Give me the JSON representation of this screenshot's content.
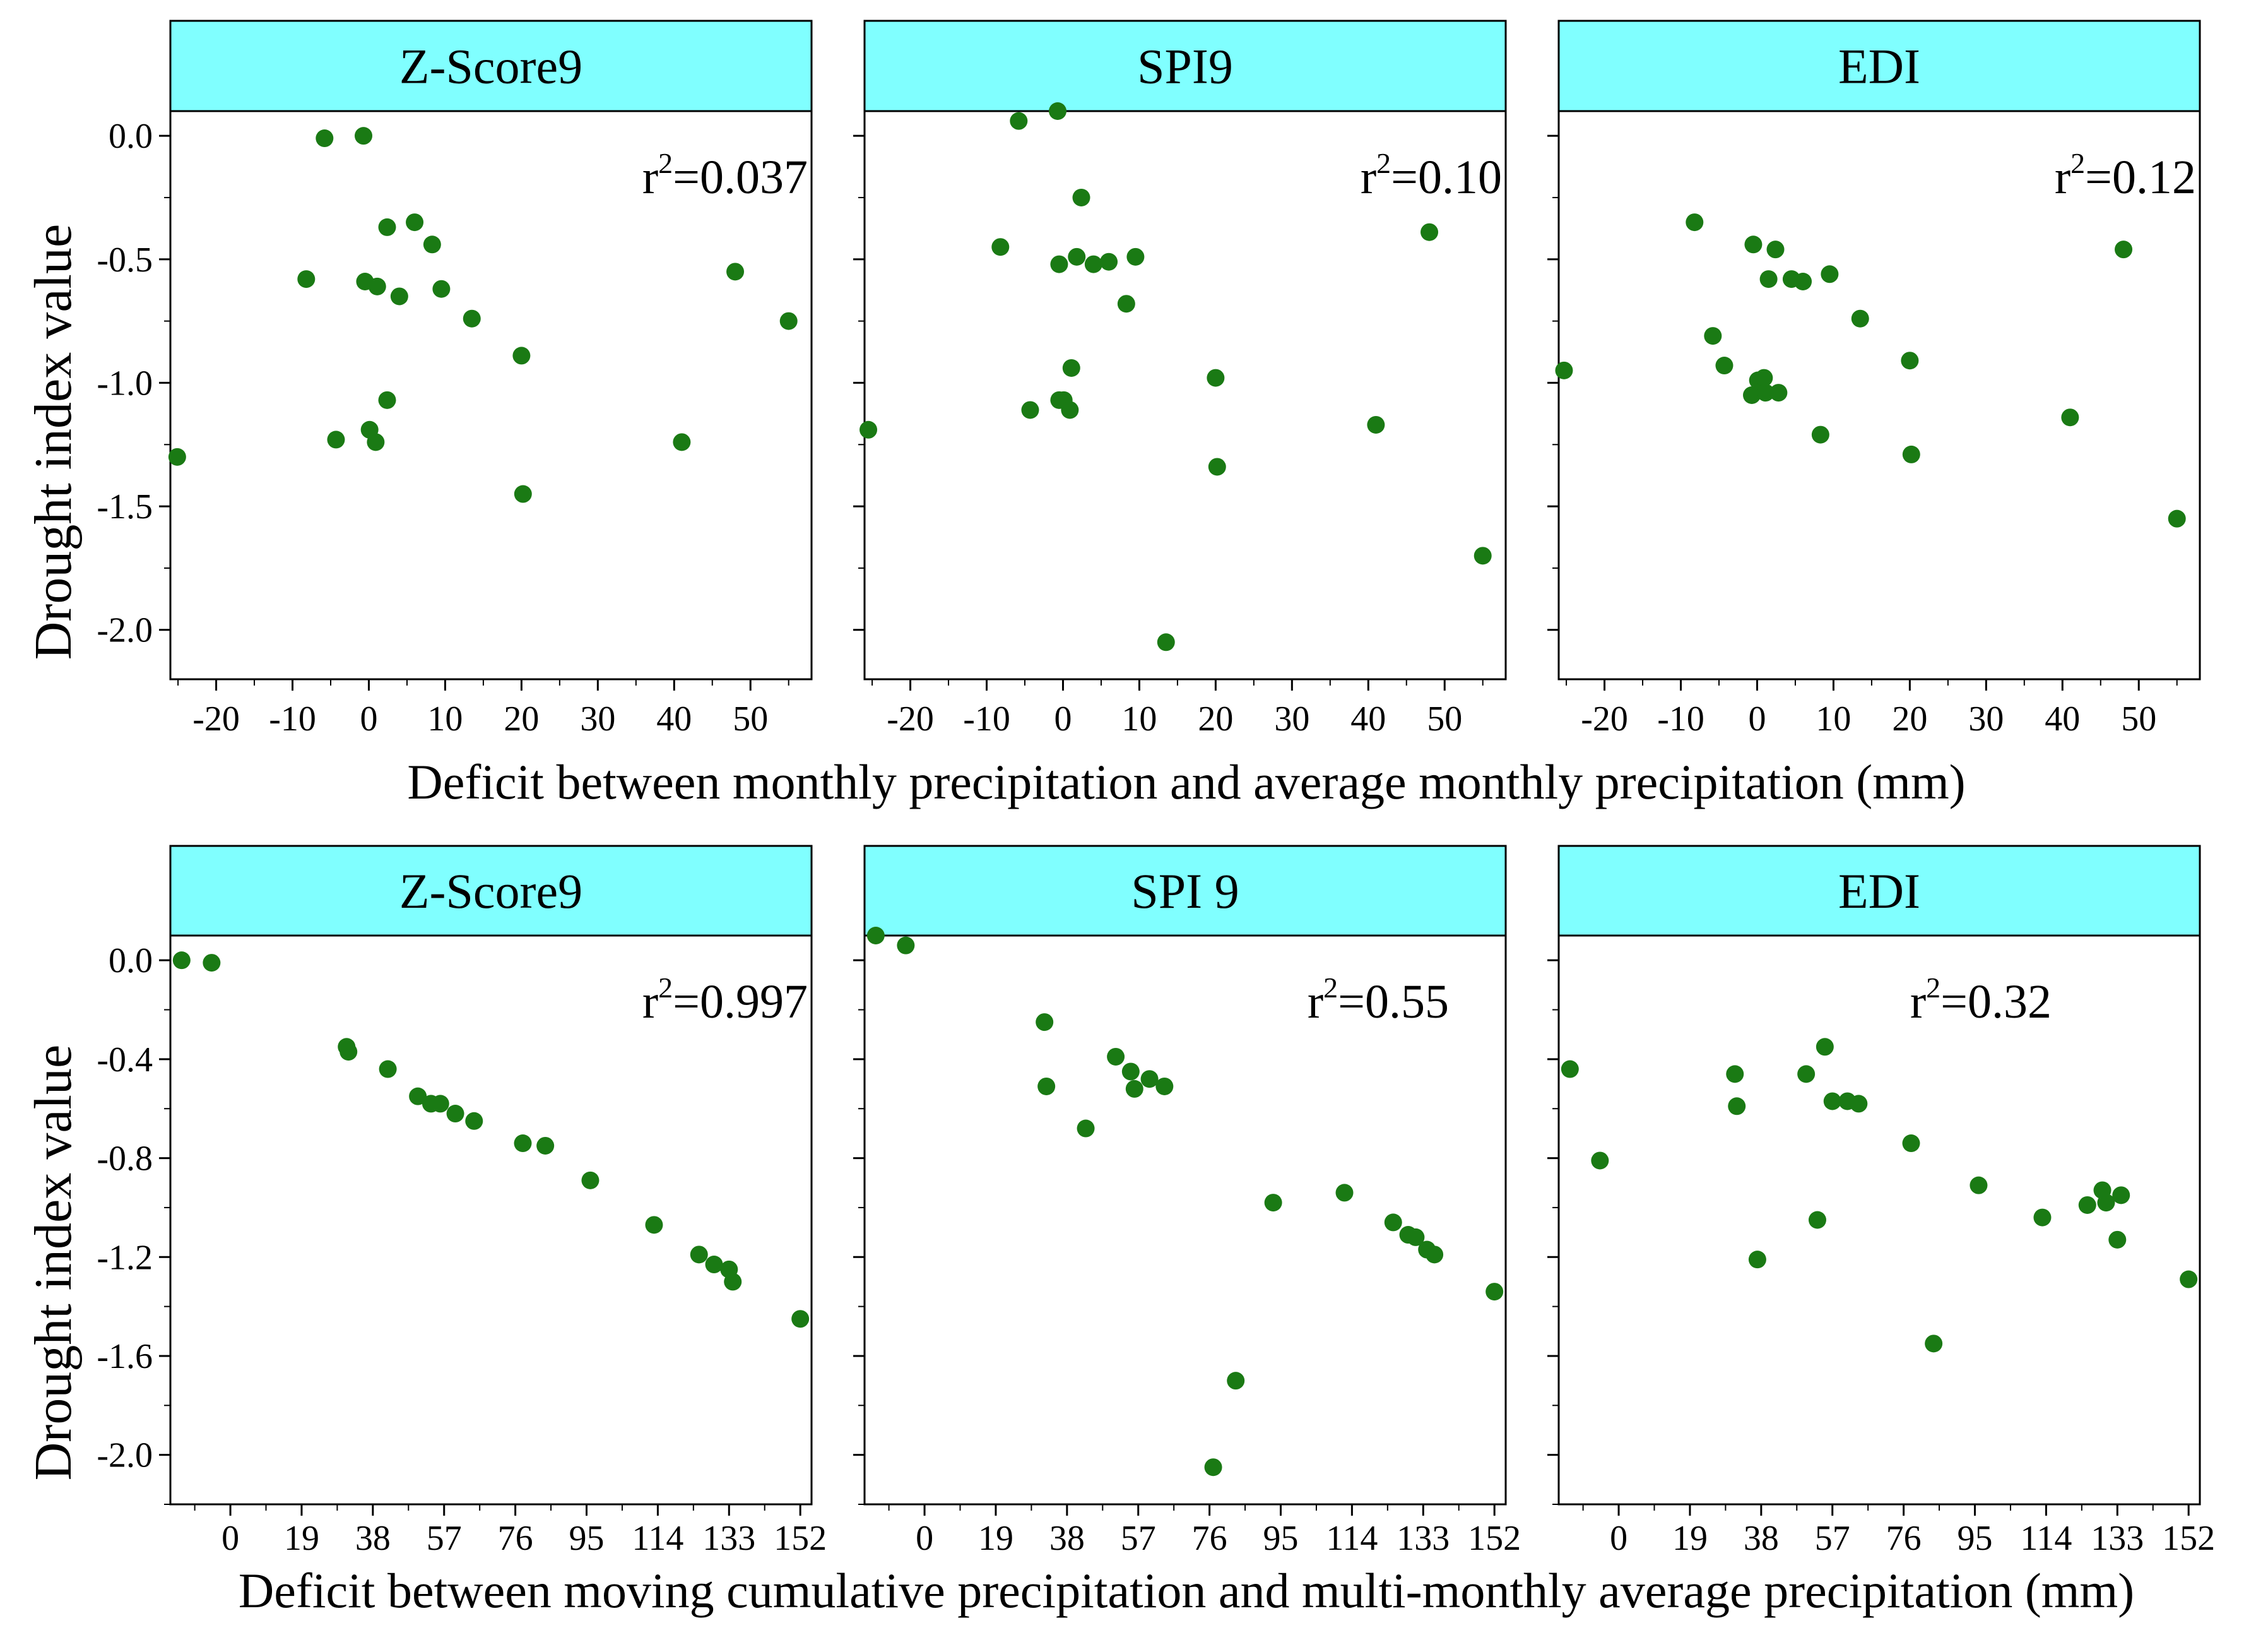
{
  "figure": {
    "ylabel": "Drought index value",
    "row_xlabels": [
      "Deficit between monthly precipitation and average monthly precipitation (mm)",
      "Deficit between moving cumulative precipitation and multi-monthly average precipitation (mm)"
    ],
    "marker_color": "#1a7a14",
    "header_color": "#80ffff"
  },
  "chart_data": [
    {
      "type": "scatter",
      "title": "Z-Score9",
      "r2_label": "r²=0.037",
      "xlim": [
        -26,
        58
      ],
      "ylim": [
        -2.2,
        0.1
      ],
      "xticks": [
        -20,
        -10,
        0,
        10,
        20,
        30,
        40,
        50
      ],
      "xticklabels": [
        "-20",
        "-10",
        "0",
        "10",
        "20",
        "30",
        "40",
        "50"
      ],
      "yticks": [
        0.0,
        -0.5,
        -1.0,
        -1.5,
        -2.0
      ],
      "yticklabels": [
        "0.0",
        "-0.5",
        "-1.0",
        "-1.5",
        "-2.0"
      ],
      "x": [
        -25.1,
        -8.2,
        -5.8,
        -0.7,
        -0.5,
        0.1,
        -4.3,
        2.4,
        1.1,
        0.9,
        2.4,
        4.0,
        6.0,
        8.3,
        9.5,
        13.5,
        20.0,
        20.2,
        41.0,
        48.0,
        55.0
      ],
      "y": [
        -1.3,
        -0.58,
        -0.01,
        0.0,
        -0.59,
        -1.19,
        -1.23,
        -0.37,
        -0.61,
        -1.24,
        -1.07,
        -0.65,
        -0.35,
        -0.44,
        -0.62,
        -0.74,
        -0.89,
        -1.45,
        -1.24,
        -0.55,
        -0.75
      ]
    },
    {
      "type": "scatter",
      "title": "SPI9",
      "r2_label": "r²=0.10",
      "xlim": [
        -26,
        58
      ],
      "ylim": [
        -2.2,
        0.1
      ],
      "xticks": [
        -20,
        -10,
        0,
        10,
        20,
        30,
        40,
        50
      ],
      "xticklabels": [
        "-20",
        "-10",
        "0",
        "10",
        "20",
        "30",
        "40",
        "50"
      ],
      "yticks": [
        0.0,
        -0.5,
        -1.0,
        -1.5,
        -2.0
      ],
      "yticklabels": [
        "0.0",
        "-0.5",
        "-1.0",
        "-1.5",
        "-2.0"
      ],
      "x": [
        -25.5,
        -8.2,
        -5.8,
        -0.7,
        -0.5,
        0.1,
        -4.3,
        -0.5,
        0.9,
        1.1,
        1.8,
        2.4,
        4.0,
        6.0,
        8.3,
        9.5,
        20.0,
        20.2,
        13.5,
        41.0,
        48.0,
        55.0
      ],
      "y": [
        -1.19,
        -0.45,
        0.06,
        0.1,
        -0.52,
        -1.07,
        -1.11,
        -1.07,
        -1.11,
        -0.94,
        -0.49,
        -0.25,
        -0.52,
        -0.51,
        -0.68,
        -0.49,
        -0.98,
        -1.34,
        -2.05,
        -1.17,
        -0.39,
        -1.7
      ]
    },
    {
      "type": "scatter",
      "title": "EDI",
      "r2_label": "r²=0.12",
      "xlim": [
        -26,
        58
      ],
      "ylim": [
        -2.2,
        0.1
      ],
      "xticks": [
        -20,
        -10,
        0,
        10,
        20,
        30,
        40,
        50
      ],
      "xticklabels": [
        "-20",
        "-10",
        "0",
        "10",
        "20",
        "30",
        "40",
        "50"
      ],
      "yticks": [
        0.0,
        -0.5,
        -1.0,
        -1.5,
        -2.0
      ],
      "yticklabels": [
        "0.0",
        "-0.5",
        "-1.0",
        "-1.5",
        "-2.0"
      ],
      "x": [
        -25.3,
        -8.2,
        -5.8,
        -4.3,
        -0.5,
        -0.7,
        0.1,
        0.9,
        1.1,
        1.5,
        2.4,
        2.8,
        4.5,
        6.0,
        8.3,
        9.5,
        13.5,
        20.0,
        20.2,
        41.0,
        48.0,
        55.0
      ],
      "y": [
        -0.95,
        -0.35,
        -0.81,
        -0.93,
        -0.44,
        -1.05,
        -0.99,
        -0.98,
        -1.04,
        -0.58,
        -0.46,
        -1.04,
        -0.58,
        -0.59,
        -1.21,
        -0.56,
        -0.74,
        -0.91,
        -1.29,
        -1.14,
        -0.46,
        -1.55
      ]
    },
    {
      "type": "scatter",
      "title": "Z-Score9",
      "r2_label": "r²=0.997",
      "xlim": [
        -16,
        155
      ],
      "ylim": [
        -2.2,
        0.1
      ],
      "xticks": [
        0,
        19,
        38,
        57,
        76,
        95,
        114,
        133,
        152
      ],
      "xticklabels": [
        "0",
        "19",
        "38",
        "57",
        "76",
        "95",
        "114",
        "133",
        "152"
      ],
      "yticks": [
        0.0,
        -0.4,
        -0.8,
        -1.2,
        -1.6,
        -2.0
      ],
      "yticklabels": [
        "0.0",
        "-0.4",
        "-0.8",
        "-1.2",
        "-1.6",
        "-2.0"
      ],
      "x": [
        -13,
        -5,
        31,
        31.5,
        42,
        50,
        53.5,
        56,
        60,
        65,
        78,
        84,
        96,
        113,
        125,
        129,
        133,
        134,
        152
      ],
      "y": [
        0.0,
        -0.01,
        -0.35,
        -0.37,
        -0.44,
        -0.55,
        -0.58,
        -0.58,
        -0.62,
        -0.65,
        -0.74,
        -0.75,
        -0.89,
        -1.07,
        -1.19,
        -1.23,
        -1.25,
        -1.3,
        -1.45
      ]
    },
    {
      "type": "scatter",
      "title": "SPI 9",
      "r2_label": "r²=0.55",
      "xlim": [
        -16,
        155
      ],
      "ylim": [
        -2.2,
        0.1
      ],
      "xticks": [
        0,
        19,
        38,
        57,
        76,
        95,
        114,
        133,
        152
      ],
      "xticklabels": [
        "0",
        "19",
        "38",
        "57",
        "76",
        "95",
        "114",
        "133",
        "152"
      ],
      "yticks": [
        0.0,
        -0.4,
        -0.8,
        -1.2,
        -1.6,
        -2.0
      ],
      "yticklabels": [
        "0.0",
        "-0.4",
        "-0.8",
        "-1.2",
        "-1.6",
        "-2.0"
      ],
      "x": [
        -13,
        -5,
        32,
        32.5,
        43,
        51,
        55,
        56,
        60,
        64,
        77,
        83,
        93,
        112,
        125,
        129,
        131,
        134,
        136,
        152
      ],
      "y": [
        0.1,
        0.06,
        -0.25,
        -0.51,
        -0.68,
        -0.39,
        -0.45,
        -0.52,
        -0.48,
        -0.51,
        -2.05,
        -1.7,
        -0.98,
        -0.94,
        -1.06,
        -1.11,
        -1.12,
        -1.17,
        -1.19,
        -1.34
      ]
    },
    {
      "type": "scatter",
      "title": "EDI",
      "r2_label": "r²=0.32",
      "xlim": [
        -16,
        155
      ],
      "ylim": [
        -2.2,
        0.1
      ],
      "xticks": [
        0,
        19,
        38,
        57,
        76,
        95,
        114,
        133,
        152
      ],
      "xticklabels": [
        "0",
        "19",
        "38",
        "57",
        "76",
        "95",
        "114",
        "133",
        "152"
      ],
      "yticks": [
        0.0,
        -0.4,
        -0.8,
        -1.2,
        -1.6,
        -2.0
      ],
      "yticklabels": [
        "0.0",
        "-0.4",
        "-0.8",
        "-1.2",
        "-1.6",
        "-2.0"
      ],
      "x": [
        -13,
        -5,
        31,
        31.5,
        37,
        50,
        53,
        55,
        57,
        61,
        64,
        78,
        84,
        96,
        113,
        125,
        129,
        130,
        133,
        134,
        152
      ],
      "y": [
        -0.44,
        -0.81,
        -0.46,
        -0.59,
        -1.21,
        -0.46,
        -1.05,
        -0.35,
        -0.57,
        -0.57,
        -0.58,
        -0.74,
        -1.55,
        -0.91,
        -1.04,
        -0.99,
        -0.93,
        -0.98,
        -1.13,
        -0.95,
        -1.29
      ]
    }
  ]
}
